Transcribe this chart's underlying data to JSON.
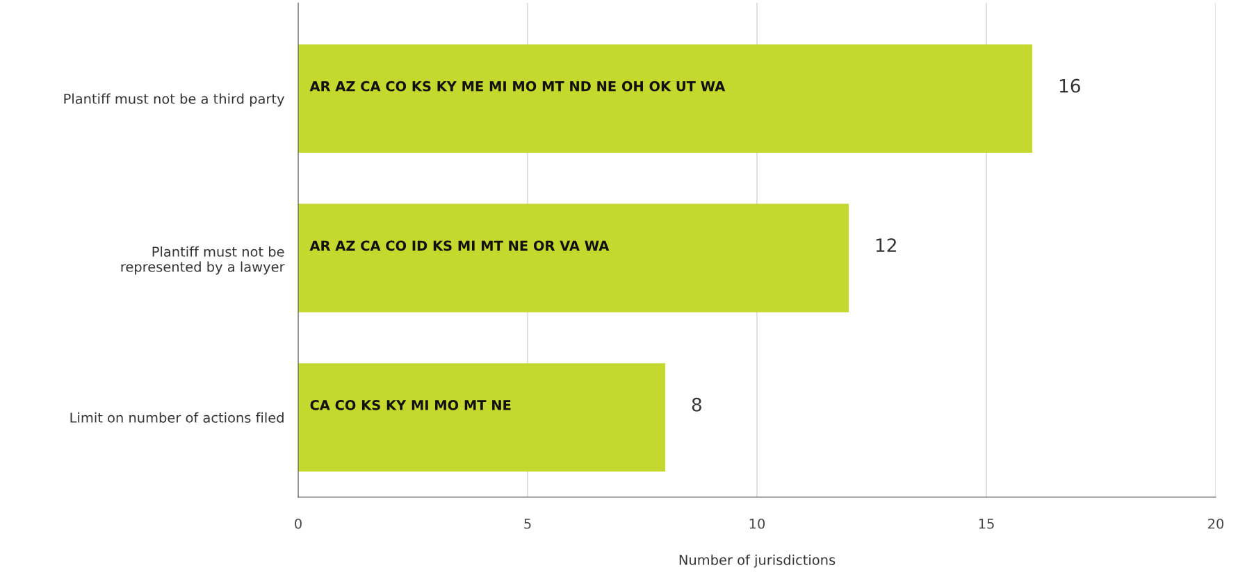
{
  "chart_data": {
    "type": "bar",
    "orientation": "horizontal",
    "xlabel": "Number of jurisdictions",
    "categories": [
      "Plantiff must not be a third party",
      "Plantiff must not be\nrepresented by a lawyer",
      "Limit on number of actions filed"
    ],
    "values": [
      16,
      12,
      8
    ],
    "color": "#c5d82e",
    "xlim": [
      0,
      20
    ],
    "xticks": [
      0,
      5,
      10,
      15,
      20
    ],
    "grid": "x",
    "data_labels": true,
    "annotations": [
      "AR AZ CA CO KS KY ME MI MO MT ND NE OH OK UT WA",
      "AR AZ CA CO ID KS MI MT NE OR VA WA",
      "CA CO KS KY MI MO MT NE"
    ]
  }
}
